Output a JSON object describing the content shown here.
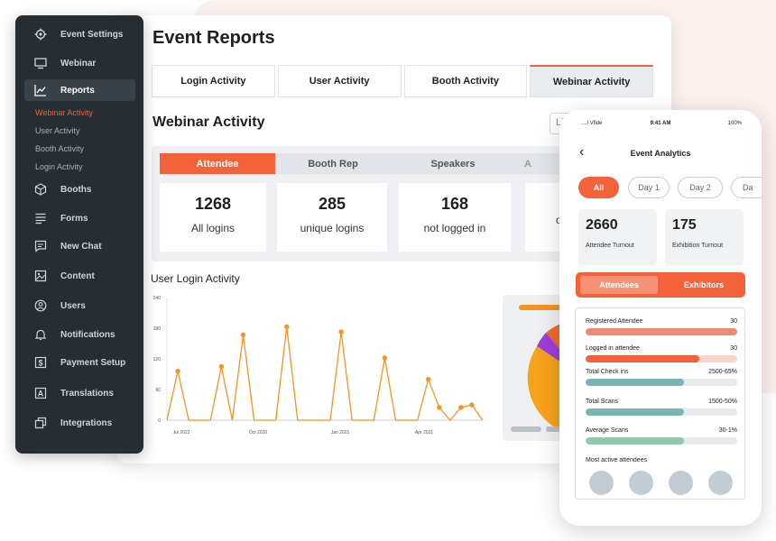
{
  "colors": {
    "accent": "#f4623a",
    "sidebar_bg": "#262d33",
    "chart_line": "#f7931e",
    "teal": "#77b6b0"
  },
  "sidebar": {
    "items": [
      {
        "label": "Event Settings",
        "icon": "gear-icon"
      },
      {
        "label": "Webinar",
        "icon": "monitor-icon"
      },
      {
        "label": "Reports",
        "icon": "chart-icon"
      },
      {
        "label": "Booths",
        "icon": "cube-icon"
      },
      {
        "label": "Forms",
        "icon": "form-icon"
      },
      {
        "label": "New Chat",
        "icon": "chat-icon"
      },
      {
        "label": "Content",
        "icon": "image-icon"
      },
      {
        "label": "Users",
        "icon": "user-icon"
      },
      {
        "label": "Notifications",
        "icon": "bell-icon"
      },
      {
        "label": "Payment Setup",
        "icon": "dollar-icon"
      },
      {
        "label": "Translations",
        "icon": "translate-icon"
      },
      {
        "label": "Integrations",
        "icon": "integrations-icon"
      }
    ],
    "sub_items": [
      "Webinar Activity",
      "User Activity",
      "Booth Activity",
      "Login Activity"
    ]
  },
  "report": {
    "title": "Event Reports",
    "tabs": [
      "Login Activity",
      "User Activity",
      "Booth Activity",
      "Webinar Activity"
    ],
    "section_title": "Webinar Activity",
    "live_placeholder": "Live",
    "sub_tabs": [
      "Attendee",
      "Booth Rep",
      "Speakers",
      "A"
    ],
    "stats": [
      {
        "value": "1268",
        "label": "All logins"
      },
      {
        "value": "285",
        "label": "unique logins"
      },
      {
        "value": "168",
        "label": "not logged in"
      },
      {
        "value": "",
        "label": "on"
      }
    ],
    "chart_title": "User Login Activity"
  },
  "chart_data": {
    "type": "line",
    "title": "User Login Activity",
    "xlabel": "",
    "ylabel": "",
    "y_ticks": [
      "240",
      "180",
      "120",
      "60",
      "0"
    ],
    "x_ticks": [
      "Jul 2022",
      "Oct 2020",
      "Jan 2021",
      "Apr 2021"
    ],
    "ylim": [
      0,
      240
    ],
    "grid": false,
    "values": [
      0,
      96,
      0,
      0,
      0,
      105,
      0,
      167,
      0,
      0,
      0,
      183,
      0,
      0,
      0,
      0,
      173,
      0,
      0,
      0,
      122,
      0,
      0,
      0,
      80,
      25,
      0,
      25,
      30,
      0
    ]
  },
  "phone": {
    "status_left": "....l Vfide",
    "status_time": "9:41 AM",
    "status_right": "100%",
    "title": "Event Analytics",
    "chips": [
      "All",
      "Day 1",
      "Day 2",
      "Da"
    ],
    "stats": [
      {
        "value": "2660",
        "label": "Attendee Turnout"
      },
      {
        "value": "175",
        "label": "Exhibition Turnout"
      }
    ],
    "segments": [
      "Attendees",
      "Exhibitors"
    ],
    "metrics": [
      {
        "label": "Registered Attendee",
        "value": "30",
        "fill": 1.0,
        "color": "#f08a78"
      },
      {
        "label": "Logged in attendee",
        "value": "30",
        "fill": 0.75,
        "color": "#f4623a"
      },
      {
        "label": "Total Check ins",
        "value": "2500-65%",
        "fill": 0.65,
        "color": "#77b6b0"
      },
      {
        "label": "Total Scans",
        "value": "1500-50%",
        "fill": 0.65,
        "color": "#77b6b0"
      },
      {
        "label": "Average Scans",
        "value": "30-1%",
        "fill": 0.65,
        "color": "#8fcbab"
      }
    ],
    "most_active_title": "Most active attendees"
  }
}
